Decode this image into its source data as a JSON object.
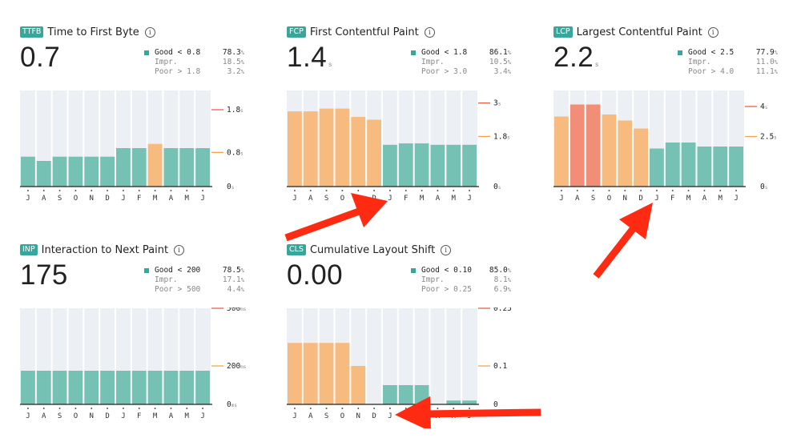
{
  "colors": {
    "good": "#75c1b4",
    "needs_improvement": "#f7bb80",
    "poor": "#f28e78",
    "panel_bg": "#ecf0f4",
    "tag": "#3aa69b",
    "threshold_good": "#f4a34c",
    "threshold_poor": "#e8604a",
    "annotation_arrow": "#ff2a12"
  },
  "panels": [
    {
      "tag": "TTFB",
      "title": "Time to First Byte",
      "info_icon": "i",
      "value": "0.7",
      "unit": "",
      "legend": [
        {
          "label": "Good",
          "cmp": "<",
          "threshold": "0.8",
          "pct": "78.3",
          "pct_unit": "%"
        },
        {
          "label": "Impr.",
          "cmp": "",
          "threshold": "",
          "pct": "18.5",
          "pct_unit": "%"
        },
        {
          "label": "Poor",
          "cmp": ">",
          "threshold": "1.8",
          "pct": "3.2",
          "pct_unit": "%"
        }
      ]
    },
    {
      "tag": "FCP",
      "title": "First Contentful Paint",
      "info_icon": "i",
      "value": "1.4",
      "unit": "s",
      "legend": [
        {
          "label": "Good",
          "cmp": "<",
          "threshold": "1.8",
          "pct": "86.1",
          "pct_unit": "%"
        },
        {
          "label": "Impr.",
          "cmp": "",
          "threshold": "",
          "pct": "10.5",
          "pct_unit": "%"
        },
        {
          "label": "Poor",
          "cmp": ">",
          "threshold": "3.0",
          "pct": "3.4",
          "pct_unit": "%"
        }
      ]
    },
    {
      "tag": "LCP",
      "title": "Largest Contentful Paint",
      "info_icon": "i",
      "value": "2.2",
      "unit": "s",
      "legend": [
        {
          "label": "Good",
          "cmp": "<",
          "threshold": "2.5",
          "pct": "77.9",
          "pct_unit": "%"
        },
        {
          "label": "Impr.",
          "cmp": "",
          "threshold": "",
          "pct": "11.0",
          "pct_unit": "%"
        },
        {
          "label": "Poor",
          "cmp": ">",
          "threshold": "4.0",
          "pct": "11.1",
          "pct_unit": "%"
        }
      ]
    },
    {
      "tag": "INP",
      "title": "Interaction to Next Paint",
      "info_icon": "i",
      "value": "175",
      "unit": "",
      "legend": [
        {
          "label": "Good",
          "cmp": "<",
          "threshold": "200",
          "pct": "78.5",
          "pct_unit": "%"
        },
        {
          "label": "Impr.",
          "cmp": "",
          "threshold": "",
          "pct": "17.1",
          "pct_unit": "%"
        },
        {
          "label": "Poor",
          "cmp": ">",
          "threshold": "500",
          "pct": "4.4",
          "pct_unit": "%"
        }
      ]
    },
    {
      "tag": "CLS",
      "title": "Cumulative Layout Shift",
      "info_icon": "i",
      "value": "0.00",
      "unit": "",
      "legend": [
        {
          "label": "Good",
          "cmp": "<",
          "threshold": "0.10",
          "pct": "85.0",
          "pct_unit": "%"
        },
        {
          "label": "Impr.",
          "cmp": "",
          "threshold": "",
          "pct": "8.1",
          "pct_unit": "%"
        },
        {
          "label": "Poor",
          "cmp": ">",
          "threshold": "0.25",
          "pct": "6.9",
          "pct_unit": "%"
        }
      ]
    }
  ],
  "chart_data": [
    {
      "type": "bar",
      "title": "Time to First Byte",
      "categories": [
        "J",
        "A",
        "S",
        "O",
        "N",
        "D",
        "J",
        "F",
        "M",
        "A",
        "M",
        "J"
      ],
      "values": [
        0.7,
        0.6,
        0.7,
        0.7,
        0.7,
        0.7,
        0.9,
        0.9,
        1.0,
        0.9,
        0.9,
        0.9
      ],
      "ratings": [
        "good",
        "good",
        "good",
        "good",
        "good",
        "good",
        "good",
        "good",
        "needs_improvement",
        "good",
        "good",
        "good"
      ],
      "ylim": [
        0,
        2.25
      ],
      "ticks": [
        {
          "value": 1.8,
          "label": "1.8",
          "unit": "s",
          "kind": "poor"
        },
        {
          "value": 0.8,
          "label": "0.8",
          "unit": "s",
          "kind": "good"
        },
        {
          "value": 0,
          "label": "0",
          "unit": "s",
          "kind": "zero"
        }
      ]
    },
    {
      "type": "bar",
      "title": "First Contentful Paint",
      "categories": [
        "J",
        "A",
        "S",
        "O",
        "N",
        "D",
        "J",
        "F",
        "M",
        "A",
        "M",
        "J"
      ],
      "values": [
        2.7,
        2.7,
        2.8,
        2.8,
        2.5,
        2.4,
        1.5,
        1.55,
        1.55,
        1.5,
        1.5,
        1.5
      ],
      "ratings": [
        "needs_improvement",
        "needs_improvement",
        "needs_improvement",
        "needs_improvement",
        "needs_improvement",
        "needs_improvement",
        "good",
        "good",
        "good",
        "good",
        "good",
        "good"
      ],
      "ylim": [
        0,
        3.45
      ],
      "ticks": [
        {
          "value": 3,
          "label": "3",
          "unit": "s",
          "kind": "poor"
        },
        {
          "value": 1.8,
          "label": "1.8",
          "unit": "s",
          "kind": "good"
        },
        {
          "value": 0,
          "label": "0",
          "unit": "s",
          "kind": "zero"
        }
      ]
    },
    {
      "type": "bar",
      "title": "Largest Contentful Paint",
      "categories": [
        "J",
        "A",
        "S",
        "O",
        "N",
        "D",
        "J",
        "F",
        "M",
        "A",
        "M",
        "J"
      ],
      "values": [
        3.5,
        4.1,
        4.1,
        3.6,
        3.3,
        2.9,
        1.9,
        2.2,
        2.2,
        2.0,
        2.0,
        2.0
      ],
      "ratings": [
        "needs_improvement",
        "poor",
        "poor",
        "needs_improvement",
        "needs_improvement",
        "needs_improvement",
        "good",
        "good",
        "good",
        "good",
        "good",
        "good"
      ],
      "ylim": [
        0,
        4.8
      ],
      "ticks": [
        {
          "value": 4,
          "label": "4",
          "unit": "s",
          "kind": "poor"
        },
        {
          "value": 2.5,
          "label": "2.5",
          "unit": "s",
          "kind": "good"
        },
        {
          "value": 0,
          "label": "0",
          "unit": "s",
          "kind": "zero"
        }
      ]
    },
    {
      "type": "bar",
      "title": "Interaction to Next Paint",
      "categories": [
        "J",
        "A",
        "S",
        "O",
        "N",
        "D",
        "J",
        "F",
        "M",
        "A",
        "M",
        "J"
      ],
      "values": [
        175,
        175,
        175,
        175,
        175,
        175,
        175,
        175,
        175,
        175,
        175,
        175
      ],
      "ratings": [
        "good",
        "good",
        "good",
        "good",
        "good",
        "good",
        "good",
        "good",
        "good",
        "good",
        "good",
        "good"
      ],
      "ylim": [
        0,
        500
      ],
      "ticks": [
        {
          "value": 500,
          "label": "500",
          "unit": "ms",
          "kind": "poor"
        },
        {
          "value": 200,
          "label": "200",
          "unit": "ms",
          "kind": "good"
        },
        {
          "value": 0,
          "label": "0",
          "unit": "ms",
          "kind": "zero"
        }
      ]
    },
    {
      "type": "bar",
      "title": "Cumulative Layout Shift",
      "categories": [
        "J",
        "A",
        "S",
        "O",
        "N",
        "D",
        "J",
        "F",
        "M",
        "A",
        "M",
        "J"
      ],
      "values": [
        0.16,
        0.16,
        0.16,
        0.16,
        0.1,
        0.0,
        0.05,
        0.05,
        0.05,
        0.0,
        0.01,
        0.01
      ],
      "ratings": [
        "needs_improvement",
        "needs_improvement",
        "needs_improvement",
        "needs_improvement",
        "needs_improvement",
        "good",
        "good",
        "good",
        "good",
        "good",
        "good",
        "good"
      ],
      "ylim": [
        0,
        0.25
      ],
      "ticks": [
        {
          "value": 0.25,
          "label": "0.25",
          "unit": "",
          "kind": "poor"
        },
        {
          "value": 0.1,
          "label": "0.1",
          "unit": "",
          "kind": "good"
        },
        {
          "value": 0,
          "label": "0",
          "unit": "",
          "kind": "zero"
        }
      ]
    }
  ]
}
